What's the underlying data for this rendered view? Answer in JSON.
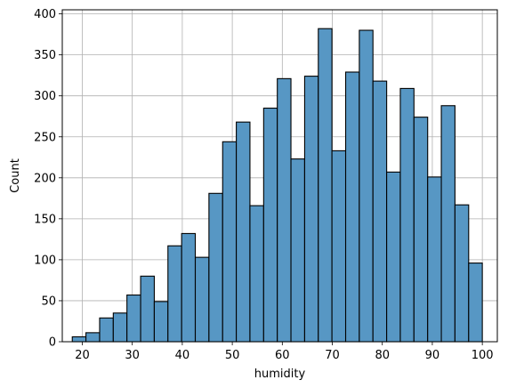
{
  "chart_data": {
    "type": "bar",
    "title": "",
    "xlabel": "humidity",
    "ylabel": "Count",
    "xlim": [
      16,
      103
    ],
    "ylim": [
      0,
      405
    ],
    "xticks": [
      20,
      30,
      40,
      50,
      60,
      70,
      80,
      90,
      100
    ],
    "yticks": [
      0,
      50,
      100,
      150,
      200,
      250,
      300,
      350,
      400
    ],
    "grid": true,
    "bar_color": "#5797c4",
    "edge_color": "#000000",
    "grid_color": "#b0b0b0",
    "bins": [
      {
        "x0": 18.0,
        "x1": 20.73,
        "count": 6
      },
      {
        "x0": 20.73,
        "x1": 23.47,
        "count": 11
      },
      {
        "x0": 23.47,
        "x1": 26.2,
        "count": 29
      },
      {
        "x0": 26.2,
        "x1": 28.93,
        "count": 35
      },
      {
        "x0": 28.93,
        "x1": 31.67,
        "count": 57
      },
      {
        "x0": 31.67,
        "x1": 34.4,
        "count": 80
      },
      {
        "x0": 34.4,
        "x1": 37.13,
        "count": 49
      },
      {
        "x0": 37.13,
        "x1": 39.87,
        "count": 117
      },
      {
        "x0": 39.87,
        "x1": 42.6,
        "count": 132
      },
      {
        "x0": 42.6,
        "x1": 45.33,
        "count": 103
      },
      {
        "x0": 45.33,
        "x1": 48.07,
        "count": 181
      },
      {
        "x0": 48.07,
        "x1": 50.8,
        "count": 244
      },
      {
        "x0": 50.8,
        "x1": 53.53,
        "count": 268
      },
      {
        "x0": 53.53,
        "x1": 56.27,
        "count": 166
      },
      {
        "x0": 56.27,
        "x1": 59.0,
        "count": 285
      },
      {
        "x0": 59.0,
        "x1": 61.73,
        "count": 321
      },
      {
        "x0": 61.73,
        "x1": 64.47,
        "count": 223
      },
      {
        "x0": 64.47,
        "x1": 67.2,
        "count": 324
      },
      {
        "x0": 67.2,
        "x1": 69.93,
        "count": 382
      },
      {
        "x0": 69.93,
        "x1": 72.67,
        "count": 233
      },
      {
        "x0": 72.67,
        "x1": 75.4,
        "count": 329
      },
      {
        "x0": 75.4,
        "x1": 78.13,
        "count": 380
      },
      {
        "x0": 78.13,
        "x1": 80.87,
        "count": 318
      },
      {
        "x0": 80.87,
        "x1": 83.6,
        "count": 207
      },
      {
        "x0": 83.6,
        "x1": 86.33,
        "count": 309
      },
      {
        "x0": 86.33,
        "x1": 89.07,
        "count": 274
      },
      {
        "x0": 89.07,
        "x1": 91.8,
        "count": 201
      },
      {
        "x0": 91.8,
        "x1": 94.53,
        "count": 288
      },
      {
        "x0": 94.53,
        "x1": 97.27,
        "count": 167
      },
      {
        "x0": 97.27,
        "x1": 100.0,
        "count": 96
      }
    ]
  }
}
